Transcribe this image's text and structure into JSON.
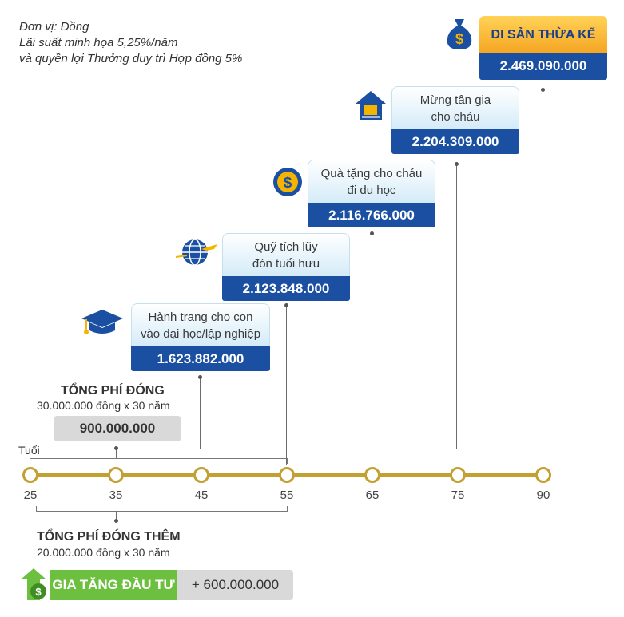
{
  "note": {
    "unit": "Đơn vị: Đồng",
    "rate": "Lãi suất minh họa 5,25%/năm",
    "bonus": "và quyền lợi Thưởng duy trì Hợp đồng 5%"
  },
  "milestones": [
    {
      "label_1": "Hành trang cho con",
      "label_2": "vào đại học/lập nghiệp",
      "value": "1.623.882.000",
      "icon": "graduation-cap-icon"
    },
    {
      "label_1": "Quỹ tích lũy",
      "label_2": "đón tuổi hưu",
      "value": "2.123.848.000",
      "icon": "globe-plane-icon"
    },
    {
      "label_1": "Quà tặng cho cháu",
      "label_2": "đi du học",
      "value": "2.116.766.000",
      "icon": "dollar-coin-icon"
    },
    {
      "label_1": "Mừng tân gia",
      "label_2": "cho cháu",
      "value": "2.204.309.000",
      "icon": "house-icon"
    },
    {
      "label_1": "DI SẢN THỪA KẾ",
      "label_2": "",
      "value": "2.469.090.000",
      "icon": "money-bag-icon"
    }
  ],
  "timeline": {
    "axis_label": "Tuổi",
    "ticks": [
      "25",
      "35",
      "45",
      "55",
      "65",
      "75",
      "90"
    ]
  },
  "premium": {
    "title": "TỔNG PHÍ ĐÓNG",
    "detail": "30.000.000 đồng x 30 năm",
    "total": "900.000.000"
  },
  "extra_premium": {
    "title": "TỔNG PHÍ ĐÓNG THÊM",
    "detail": "20.000.000 đồng x 30 năm",
    "badge": "GIA TĂNG ĐẦU TƯ",
    "total": "+ 600.000.000",
    "icon": "growth-arrow-dollar-icon"
  },
  "colors": {
    "navy": "#1a4fa1",
    "gold": "#c2a032",
    "orange": "#f5a623",
    "green": "#6cbf3f",
    "gray": "#d9d9d9"
  }
}
